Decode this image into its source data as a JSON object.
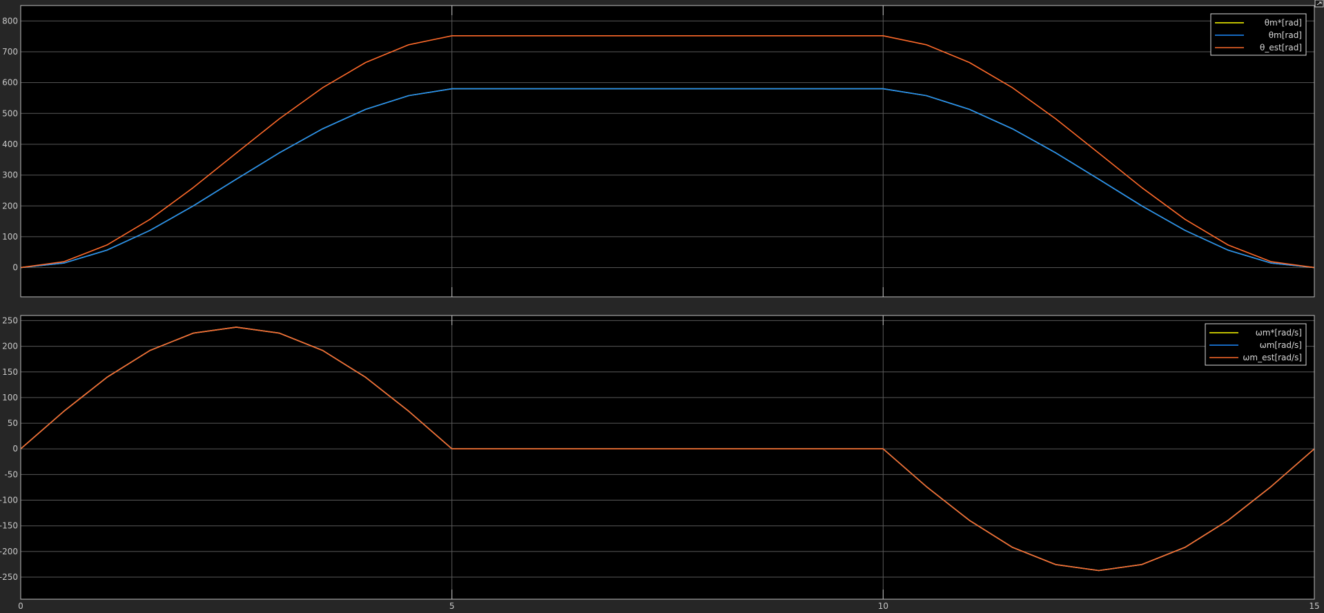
{
  "colors": {
    "figure_bg": "#262626",
    "axes_bg": "#000000",
    "grid": "#5a5a5a",
    "axes_border": "#bdbdbd",
    "tick_text": "#c8c8c8",
    "legend_bg": "#000000",
    "legend_border": "#dcdcdc"
  },
  "chart_data": [
    {
      "type": "line",
      "xlim": [
        0,
        15
      ],
      "ylim": [
        -95,
        850
      ],
      "xticks": [
        0,
        5,
        10,
        15
      ],
      "yticks": [
        0,
        100,
        200,
        300,
        400,
        500,
        600,
        700,
        800
      ],
      "show_x_tick_labels": false,
      "grid": true,
      "legend_placement": "top-right",
      "series": [
        {
          "name": "θm*[rad]",
          "color": "#ffff00",
          "x": [
            0,
            0.5,
            1,
            1.5,
            2,
            2.5,
            3,
            3.5,
            4,
            4.5,
            5,
            10,
            10.5,
            11,
            11.5,
            12,
            12.5,
            13,
            13.5,
            14,
            14.5,
            15
          ],
          "y": [
            0,
            14.6,
            56.4,
            120.6,
            200,
            286.6,
            372.4,
            450,
            513.3,
            557.8,
            580,
            580,
            557.8,
            513.3,
            450,
            372.4,
            286.6,
            200,
            120.6,
            56.4,
            14.6,
            0
          ]
        },
        {
          "name": "θm[rad]",
          "color": "#1e8cff",
          "x": [
            0,
            0.5,
            1,
            1.5,
            2,
            2.5,
            3,
            3.5,
            4,
            4.5,
            5,
            10,
            10.5,
            11,
            11.5,
            12,
            12.5,
            13,
            13.5,
            14,
            14.5,
            15
          ],
          "y": [
            0,
            14.6,
            56.4,
            120.6,
            200,
            286.6,
            372.4,
            450,
            513.3,
            557.8,
            580,
            580,
            557.8,
            513.3,
            450,
            372.4,
            286.6,
            200,
            120.6,
            56.4,
            14.6,
            0
          ]
        },
        {
          "name": "θ_est[rad]",
          "color": "#ff6a2a",
          "x": [
            0,
            0.5,
            1,
            1.5,
            2,
            2.5,
            3,
            3.5,
            4,
            4.5,
            5,
            10,
            10.5,
            11,
            11.5,
            12,
            12.5,
            13,
            13.5,
            14,
            14.5,
            15
          ],
          "y": [
            0,
            19,
            73.1,
            156.4,
            259.3,
            371.5,
            482.7,
            583.2,
            665.2,
            722.8,
            752,
            752,
            722.8,
            665.2,
            583.2,
            482.7,
            371.5,
            259.3,
            156.4,
            73.1,
            19,
            0
          ]
        }
      ]
    },
    {
      "type": "line",
      "xlim": [
        0,
        15
      ],
      "ylim": [
        -293,
        260
      ],
      "xticks": [
        0,
        5,
        10,
        15
      ],
      "yticks": [
        -250,
        -200,
        -150,
        -100,
        -50,
        0,
        50,
        100,
        150,
        200,
        250
      ],
      "show_x_tick_labels": true,
      "grid": true,
      "legend_placement": "top-right",
      "series": [
        {
          "name": "ωm*[rad/s]",
          "color": "#ffff00",
          "x": [
            0,
            0.5,
            1,
            1.5,
            2,
            2.5,
            3,
            3.5,
            4,
            4.5,
            5,
            10,
            10.5,
            11,
            11.5,
            12,
            12.5,
            13,
            13.5,
            14,
            14.5,
            15
          ],
          "y": [
            0,
            73.3,
            139.4,
            191.9,
            225.5,
            237.2,
            225.5,
            191.9,
            139.4,
            73.3,
            0,
            0,
            -73.3,
            -139.4,
            -191.9,
            -225.5,
            -237.2,
            -225.5,
            -191.9,
            -139.4,
            -73.3,
            0
          ]
        },
        {
          "name": "ωm[rad/s]",
          "color": "#1e8cff",
          "x": [
            0,
            0.5,
            1,
            1.5,
            2,
            2.5,
            3,
            3.5,
            4,
            4.5,
            5,
            10,
            10.5,
            11,
            11.5,
            12,
            12.5,
            13,
            13.5,
            14,
            14.5,
            15
          ],
          "y": [
            0,
            73.3,
            139.4,
            191.9,
            225.5,
            237.2,
            225.5,
            191.9,
            139.4,
            73.3,
            0,
            0,
            -73.3,
            -139.4,
            -191.9,
            -225.5,
            -237.2,
            -225.5,
            -191.9,
            -139.4,
            -73.3,
            0
          ]
        },
        {
          "name": "ωm_est[rad/s]",
          "color": "#ff6a2a",
          "x": [
            0,
            0.5,
            1,
            1.5,
            2,
            2.5,
            3,
            3.5,
            4,
            4.5,
            5,
            10,
            10.5,
            11,
            11.5,
            12,
            12.5,
            13,
            13.5,
            14,
            14.5,
            15
          ],
          "y": [
            0,
            73.3,
            139.4,
            191.9,
            225.5,
            237.2,
            225.5,
            191.9,
            139.4,
            73.3,
            0,
            0,
            -73.3,
            -139.4,
            -191.9,
            -225.5,
            -237.2,
            -225.5,
            -191.9,
            -139.4,
            -73.3,
            0
          ]
        }
      ]
    }
  ]
}
